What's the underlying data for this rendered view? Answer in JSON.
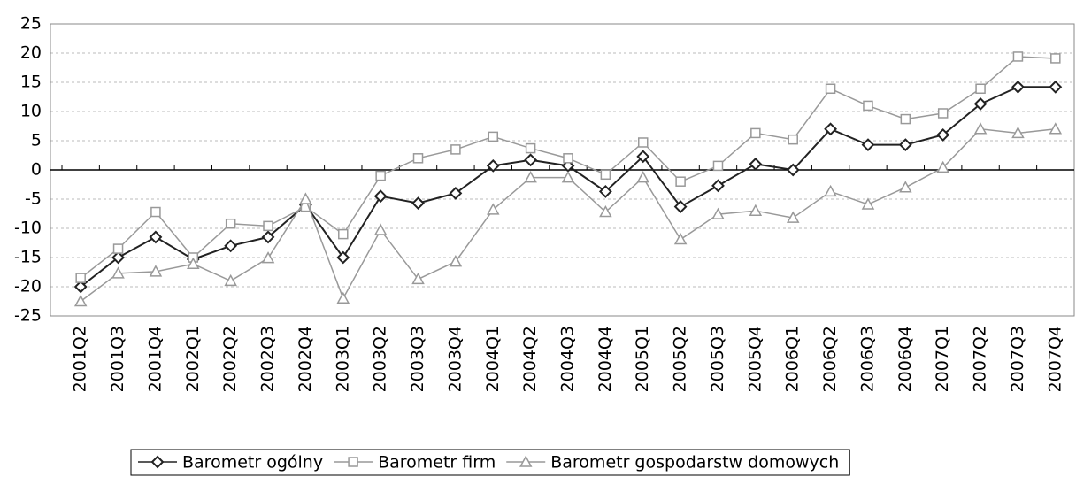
{
  "chart_data": {
    "type": "line",
    "categories": [
      "2001Q2",
      "2001Q3",
      "2001Q4",
      "2002Q1",
      "2002Q2",
      "2002Q3",
      "2002Q4",
      "2003Q1",
      "2003Q2",
      "2003Q3",
      "2003Q4",
      "2004Q1",
      "2004Q2",
      "2004Q3",
      "2004Q4",
      "2005Q1",
      "2005Q2",
      "2005Q3",
      "2005Q4",
      "2006Q1",
      "2006Q2",
      "2006Q3",
      "2006Q4",
      "2007Q1",
      "2007Q2",
      "2007Q3",
      "2007Q4"
    ],
    "series": [
      {
        "name": "Barometr ogólny",
        "color": "#222222",
        "marker": "diamond",
        "values": [
          -20,
          -15,
          -11.5,
          -15.3,
          -13,
          -11.5,
          -6,
          -15,
          -4.5,
          -5.7,
          -4,
          0.7,
          1.7,
          0.7,
          -3.7,
          2.3,
          -6.3,
          -2.7,
          1,
          0,
          7,
          4.3,
          4.3,
          6,
          11.3,
          14.2,
          14.2
        ]
      },
      {
        "name": "Barometr firm",
        "color": "#999999",
        "marker": "square",
        "values": [
          -18.5,
          -13.5,
          -7.2,
          -15,
          -9.2,
          -9.6,
          -6.3,
          -11,
          -1,
          2,
          3.5,
          5.7,
          3.7,
          2,
          -0.8,
          4.7,
          -2,
          0.7,
          6.3,
          5.2,
          13.9,
          11,
          8.7,
          9.7,
          13.9,
          19.4,
          19.1
        ]
      },
      {
        "name": "Barometr gospodarstw domowych",
        "color": "#999999",
        "marker": "triangle",
        "values": [
          -22.5,
          -17.7,
          -17.4,
          -16.1,
          -19,
          -15.1,
          -5,
          -22,
          -10.3,
          -18.7,
          -15.7,
          -6.8,
          -1.3,
          -1.3,
          -7.2,
          -1.3,
          -11.9,
          -7.6,
          -7,
          -8.2,
          -3.7,
          -5.9,
          -3,
          0.4,
          7,
          6.3,
          7
        ]
      }
    ],
    "ylim": [
      -25,
      25
    ],
    "yticks": [
      -25,
      -20,
      -15,
      -10,
      -5,
      0,
      5,
      10,
      15,
      20,
      25
    ],
    "grid": true,
    "legend": "bottom"
  }
}
